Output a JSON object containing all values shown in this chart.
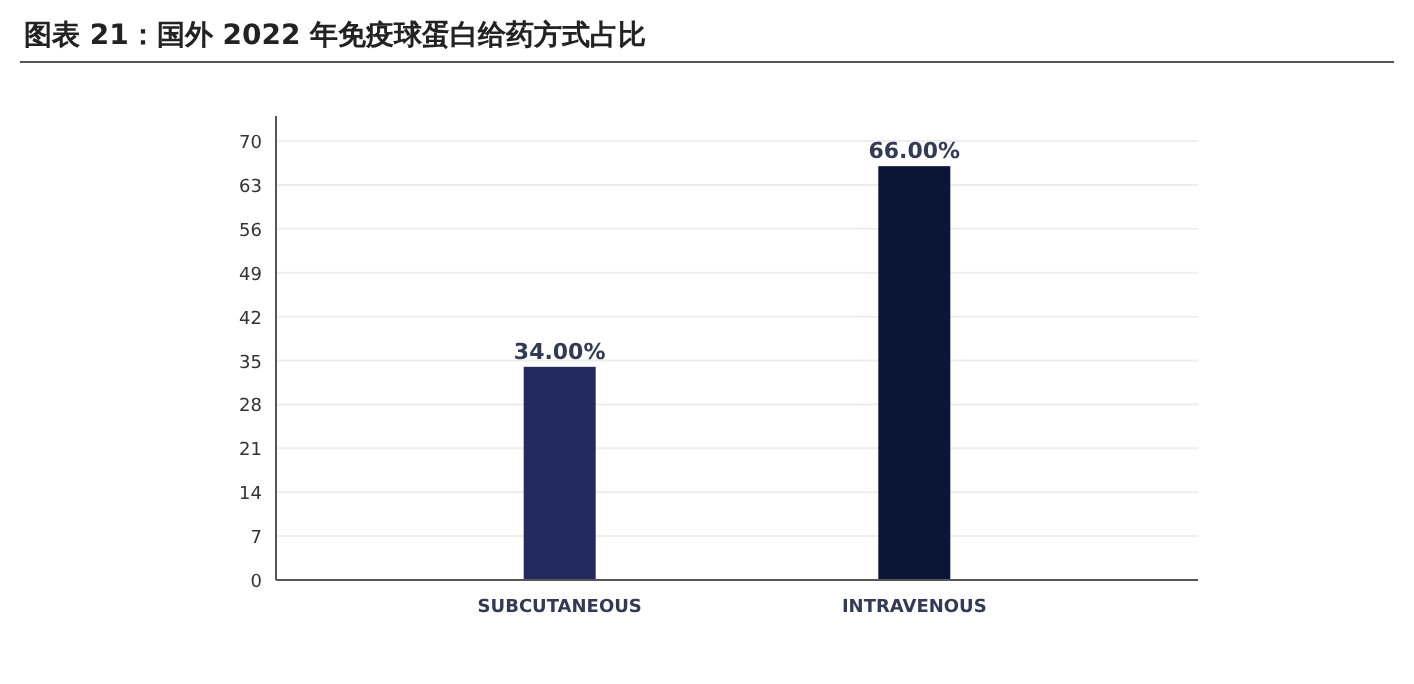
{
  "chart_data": {
    "type": "bar",
    "title": "图表 21：国外 2022 年免疫球蛋白给药方式占比",
    "categories": [
      "SUBCUTANEOUS",
      "INTRAVENOUS"
    ],
    "values": [
      34,
      66
    ],
    "colors": [
      "#232a60",
      "#0b1535"
    ],
    "value_labels": [
      "34.00%",
      "66.00%"
    ],
    "ylim": [
      0,
      74
    ],
    "yticks": [
      0,
      7,
      14,
      21,
      28,
      35,
      42,
      49,
      56,
      63,
      70
    ],
    "grid": "y"
  }
}
